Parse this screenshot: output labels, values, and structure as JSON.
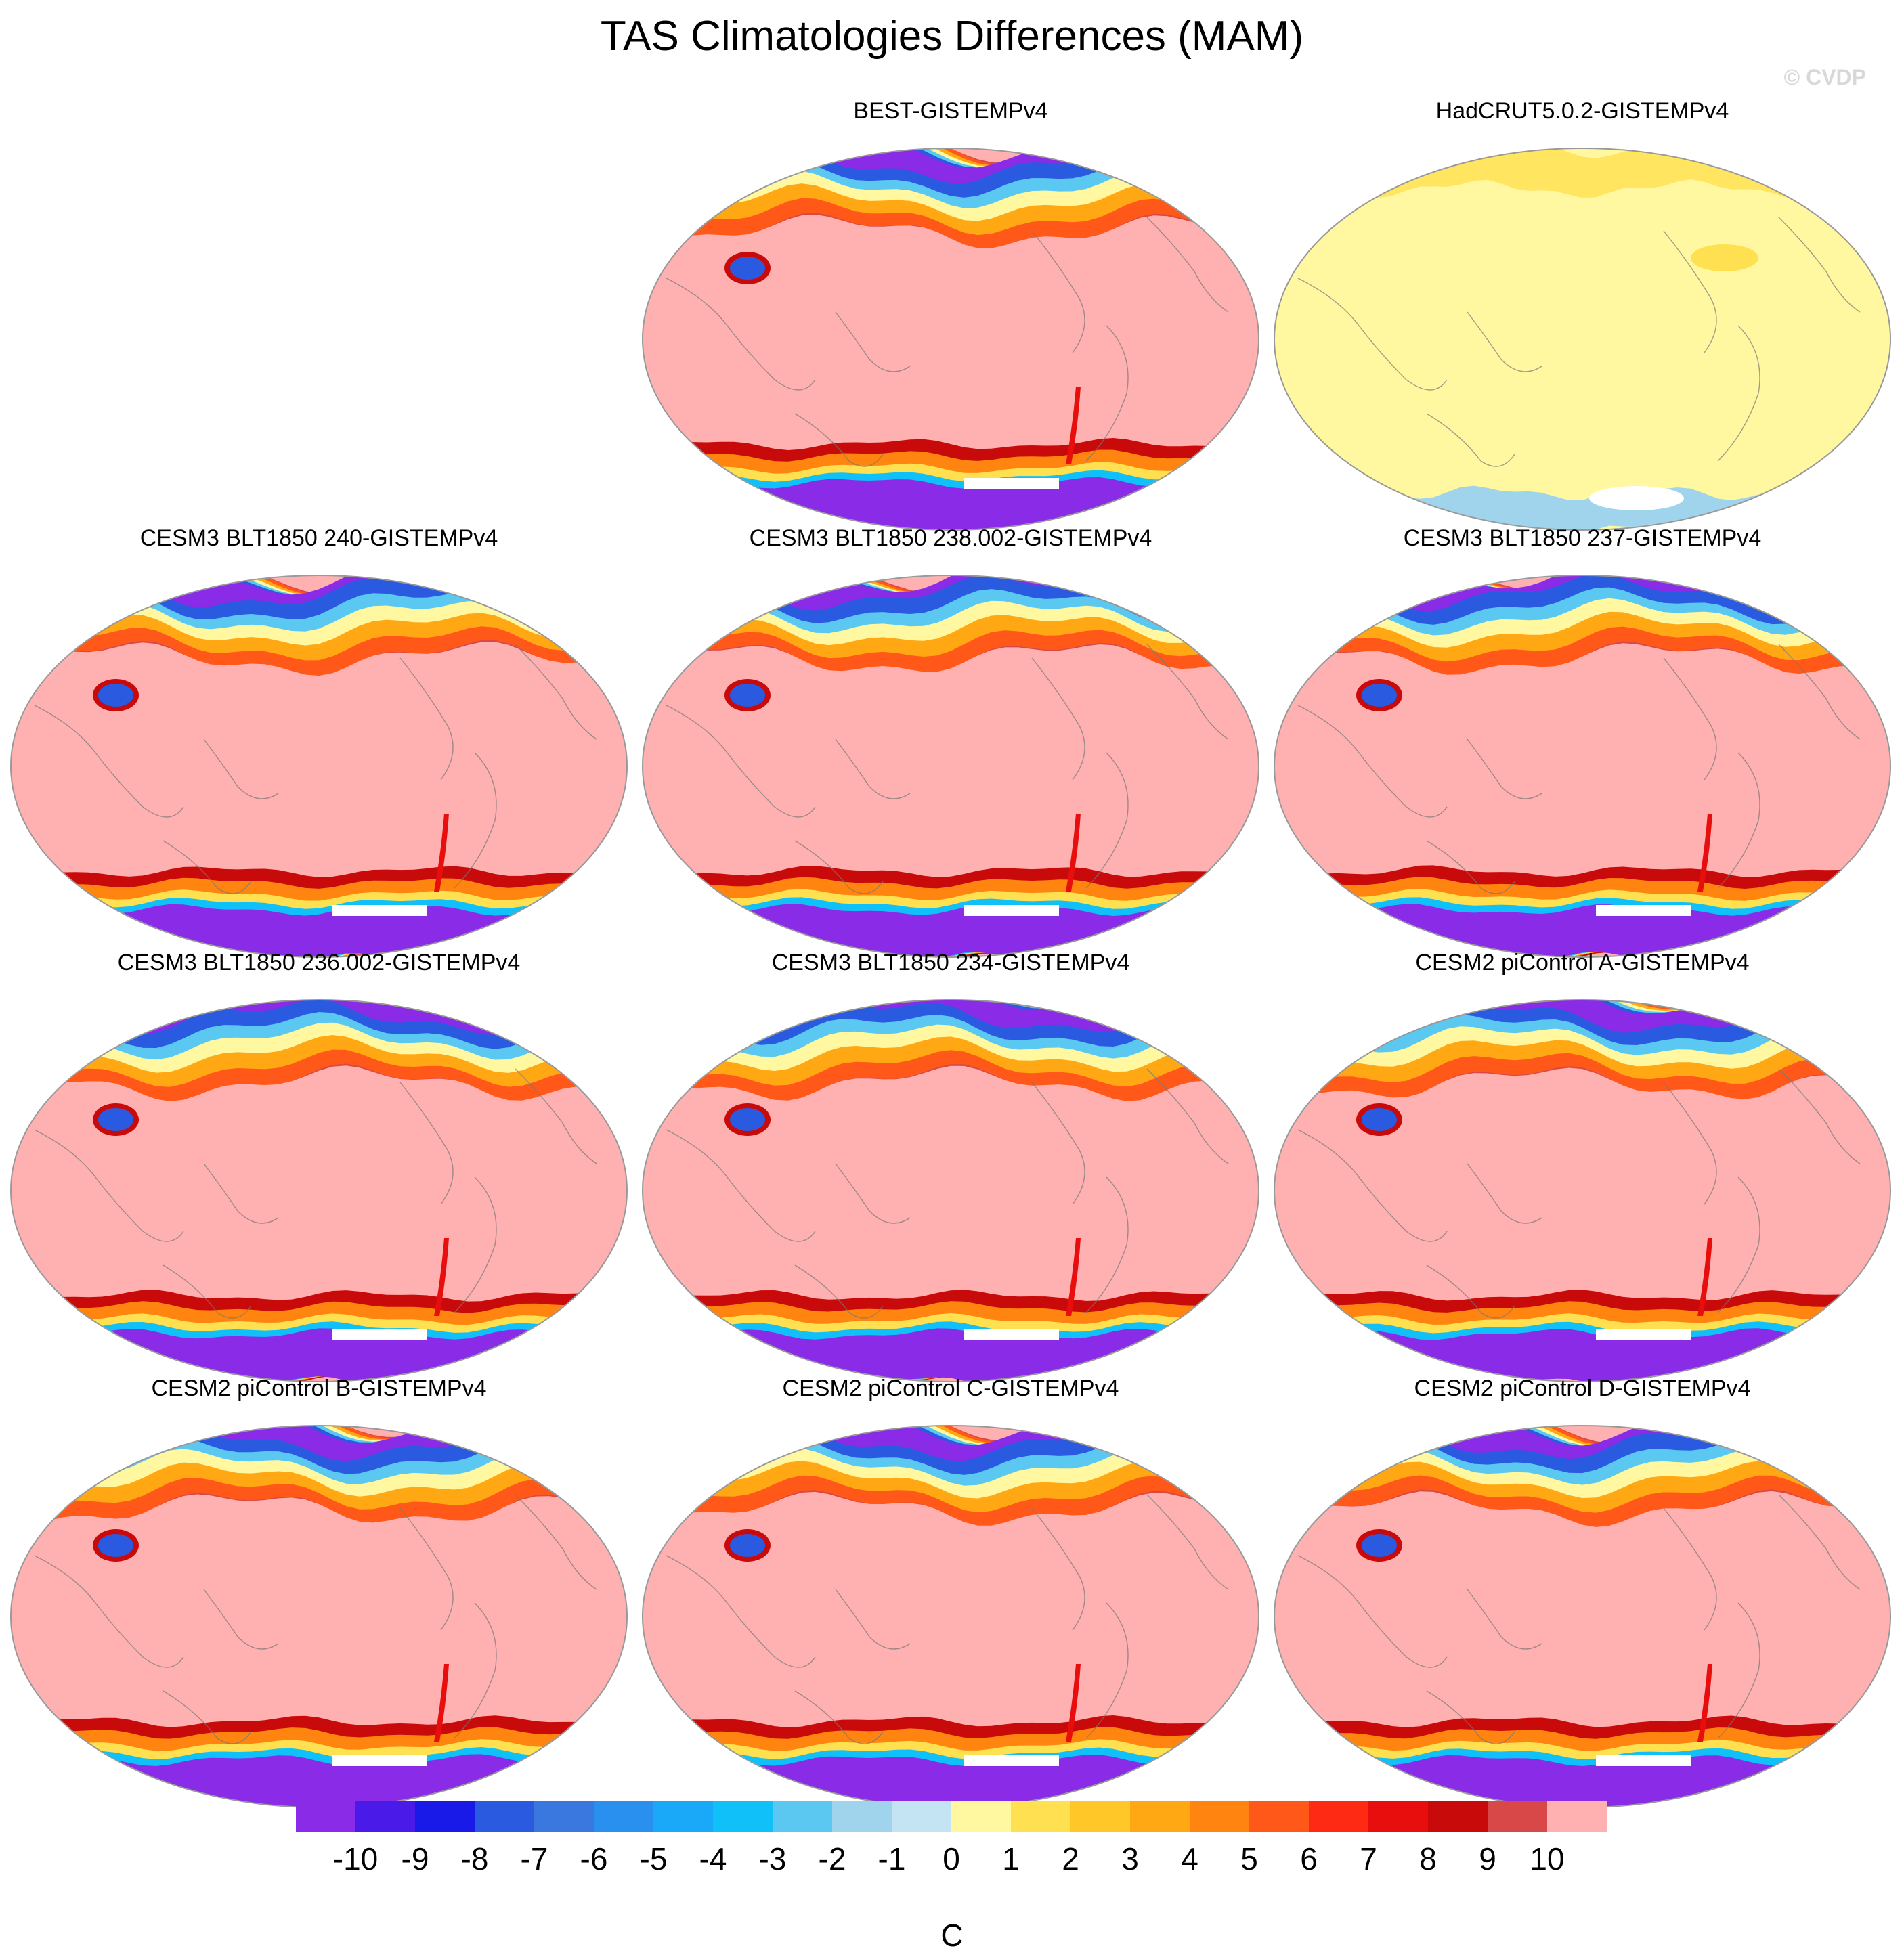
{
  "title": "TAS Climatologies Differences (MAM)",
  "credit": "© CVDP",
  "panels": [
    {
      "label": "BEST-GISTEMPv4",
      "style": "obs_extreme"
    },
    {
      "label": "HadCRUT5.0.2-GISTEMPv4",
      "style": "near_zero"
    },
    {
      "label": "CESM3 BLT1850 240-GISTEMPv4",
      "style": "model"
    },
    {
      "label": "CESM3 BLT1850 238.002-GISTEMPv4",
      "style": "model"
    },
    {
      "label": "CESM3 BLT1850 237-GISTEMPv4",
      "style": "model"
    },
    {
      "label": "CESM3 BLT1850 236.002-GISTEMPv4",
      "style": "model"
    },
    {
      "label": "CESM3 BLT1850 234-GISTEMPv4",
      "style": "model"
    },
    {
      "label": "CESM2 piControl A-GISTEMPv4",
      "style": "model"
    },
    {
      "label": "CESM2 piControl B-GISTEMPv4",
      "style": "model"
    },
    {
      "label": "CESM2 piControl C-GISTEMPv4",
      "style": "model"
    },
    {
      "label": "CESM2 piControl D-GISTEMPv4",
      "style": "model"
    }
  ],
  "colorbar": {
    "units": "C",
    "tick_labels": [
      "-10",
      "-9",
      "-8",
      "-7",
      "-6",
      "-5",
      "-4",
      "-3",
      "-2",
      "-1",
      "0",
      "1",
      "2",
      "3",
      "4",
      "5",
      "6",
      "7",
      "8",
      "9",
      "10"
    ],
    "colors": [
      "#8a2be8",
      "#4a1ae8",
      "#1a1ae8",
      "#2a5ae0",
      "#3a78e0",
      "#2a90f0",
      "#1aa8f8",
      "#10c0f8",
      "#5ac8f0",
      "#a0d4ec",
      "#c4e4f4",
      "#fff8a0",
      "#ffe050",
      "#ffc828",
      "#ffa814",
      "#ff8410",
      "#ff5818",
      "#ff2a14",
      "#e80e0e",
      "#c80a0a",
      "#d84848",
      "#ffb0b0"
    ]
  }
}
